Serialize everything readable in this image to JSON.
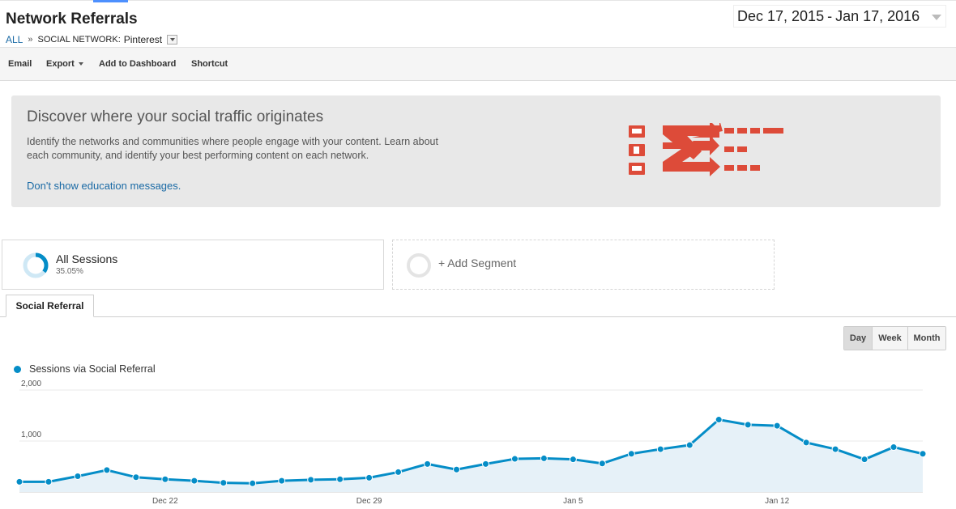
{
  "header": {
    "title": "Network Referrals",
    "breadcrumb": {
      "root": "ALL",
      "separator": "»",
      "dimension_label": "SOCIAL NETWORK:",
      "dimension_value": "Pinterest"
    },
    "date_range": {
      "start": "Dec 17, 2015",
      "separator": "-",
      "end": "Jan 17, 2016"
    }
  },
  "toolbar": {
    "email": "Email",
    "export": "Export",
    "add_to_dashboard": "Add to Dashboard",
    "shortcut": "Shortcut"
  },
  "education": {
    "heading": "Discover where your social traffic originates",
    "body": "Identify the networks and communities where people engage with your content. Learn about each community, and identify your best performing content on each network.",
    "dismiss_link": "Don't show education messages.",
    "illustration_color": "#dd4b39",
    "illustration_icons": [
      "comment-icon",
      "thumbs-up-icon",
      "comment-icon"
    ]
  },
  "segments": [
    {
      "name": "All Sessions",
      "percent": "35.05%",
      "ring_fraction": 0.3505
    },
    {
      "add_label": "+ Add Segment"
    }
  ],
  "tabs": [
    {
      "label": "Social Referral"
    }
  ],
  "granularity": {
    "options": [
      "Day",
      "Week",
      "Month"
    ],
    "selected": "Day"
  },
  "colors": {
    "series": "#058dc7",
    "area": "#e6f1f8",
    "link": "#1a6aa5"
  },
  "chart_data": {
    "type": "area",
    "title": "",
    "xlabel": "",
    "ylabel": "",
    "ylim": [
      0,
      2000
    ],
    "y_ticks": [
      {
        "value": 1000,
        "label": "1,000"
      },
      {
        "value": 2000,
        "label": "2,000"
      }
    ],
    "x_tick_labels": [
      {
        "date": "2015-12-22",
        "label": "Dec 22"
      },
      {
        "date": "2015-12-29",
        "label": "Dec 29"
      },
      {
        "date": "2016-01-05",
        "label": "Jan 5"
      },
      {
        "date": "2016-01-12",
        "label": "Jan 12"
      }
    ],
    "legend": "top-left",
    "grid": true,
    "series": [
      {
        "name": "Sessions via Social Referral",
        "points": [
          {
            "date": "2015-12-17",
            "value": 200
          },
          {
            "date": "2015-12-18",
            "value": 200
          },
          {
            "date": "2015-12-19",
            "value": 310
          },
          {
            "date": "2015-12-20",
            "value": 430
          },
          {
            "date": "2015-12-21",
            "value": 290
          },
          {
            "date": "2015-12-22",
            "value": 250
          },
          {
            "date": "2015-12-23",
            "value": 220
          },
          {
            "date": "2015-12-24",
            "value": 180
          },
          {
            "date": "2015-12-25",
            "value": 170
          },
          {
            "date": "2015-12-26",
            "value": 220
          },
          {
            "date": "2015-12-27",
            "value": 240
          },
          {
            "date": "2015-12-28",
            "value": 250
          },
          {
            "date": "2015-12-29",
            "value": 280
          },
          {
            "date": "2015-12-30",
            "value": 390
          },
          {
            "date": "2015-12-31",
            "value": 550
          },
          {
            "date": "2016-01-01",
            "value": 440
          },
          {
            "date": "2016-01-02",
            "value": 550
          },
          {
            "date": "2016-01-03",
            "value": 650
          },
          {
            "date": "2016-01-04",
            "value": 660
          },
          {
            "date": "2016-01-05",
            "value": 640
          },
          {
            "date": "2016-01-06",
            "value": 560
          },
          {
            "date": "2016-01-07",
            "value": 750
          },
          {
            "date": "2016-01-08",
            "value": 840
          },
          {
            "date": "2016-01-09",
            "value": 920
          },
          {
            "date": "2016-01-10",
            "value": 1420
          },
          {
            "date": "2016-01-11",
            "value": 1320
          },
          {
            "date": "2016-01-12",
            "value": 1300
          },
          {
            "date": "2016-01-13",
            "value": 970
          },
          {
            "date": "2016-01-14",
            "value": 840
          },
          {
            "date": "2016-01-15",
            "value": 640
          },
          {
            "date": "2016-01-16",
            "value": 880
          },
          {
            "date": "2016-01-17",
            "value": 750
          }
        ]
      }
    ]
  }
}
